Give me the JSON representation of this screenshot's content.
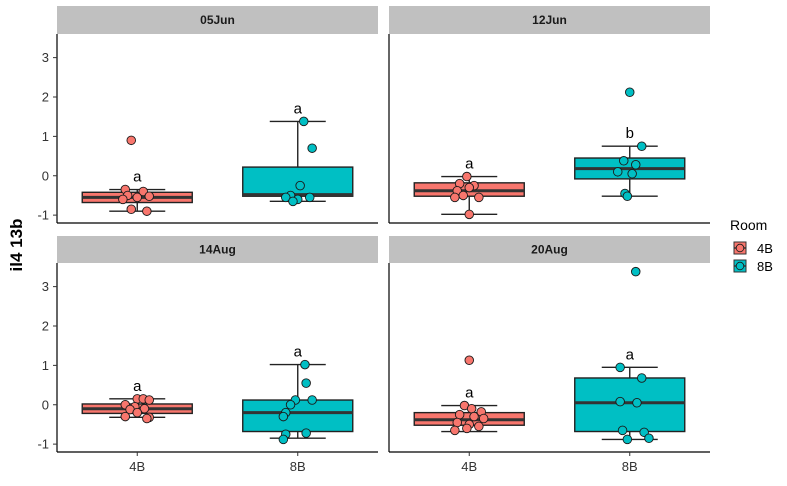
{
  "chart_data": {
    "type": "box",
    "ylabel": "il4 13b",
    "xlabel": "",
    "categories": [
      "4B",
      "8B"
    ],
    "ylim": [
      -1.2,
      3.6
    ],
    "yticks": [
      -1,
      0,
      1,
      2,
      3
    ],
    "grid": false,
    "legend": {
      "title": "Room",
      "position": "right",
      "entries": [
        {
          "name": "4B",
          "color": "#F8766D"
        },
        {
          "name": "8B",
          "color": "#00BFC4"
        }
      ]
    },
    "facets": [
      {
        "label": "05Jun",
        "boxes": [
          {
            "category": "4B",
            "color": "#F8766D",
            "lower_whisker": -0.9,
            "q1": -0.68,
            "median": -0.55,
            "q3": -0.42,
            "upper_whisker": -0.35,
            "letter": "a",
            "points": [
              [
                -0.05,
                0.9
              ],
              [
                -0.1,
                -0.35
              ],
              [
                0.05,
                -0.4
              ],
              [
                -0.08,
                -0.5
              ],
              [
                0.1,
                -0.52
              ],
              [
                0.0,
                -0.55
              ],
              [
                -0.12,
                -0.6
              ],
              [
                -0.05,
                -0.85
              ],
              [
                0.08,
                -0.9
              ]
            ]
          },
          {
            "category": "8B",
            "color": "#00BFC4",
            "lower_whisker": -0.65,
            "q1": -0.52,
            "median": -0.48,
            "q3": 0.22,
            "upper_whisker": 1.38,
            "letter": "a",
            "points": [
              [
                0.05,
                1.38
              ],
              [
                0.12,
                0.7
              ],
              [
                0.02,
                -0.25
              ],
              [
                -0.06,
                -0.5
              ],
              [
                0.1,
                -0.55
              ],
              [
                -0.1,
                -0.55
              ],
              [
                0.0,
                -0.6
              ],
              [
                -0.04,
                -0.65
              ]
            ]
          }
        ]
      },
      {
        "label": "12Jun",
        "boxes": [
          {
            "category": "4B",
            "color": "#F8766D",
            "lower_whisker": -0.98,
            "q1": -0.52,
            "median": -0.38,
            "q3": -0.18,
            "upper_whisker": -0.02,
            "letter": "a",
            "points": [
              [
                -0.02,
                -0.02
              ],
              [
                -0.08,
                -0.2
              ],
              [
                0.04,
                -0.25
              ],
              [
                -0.1,
                -0.38
              ],
              [
                0.0,
                -0.3
              ],
              [
                -0.05,
                -0.5
              ],
              [
                0.08,
                -0.55
              ],
              [
                -0.12,
                -0.55
              ],
              [
                0.0,
                -0.98
              ]
            ]
          },
          {
            "category": "8B",
            "color": "#00BFC4",
            "lower_whisker": -0.52,
            "q1": -0.08,
            "median": 0.18,
            "q3": 0.45,
            "upper_whisker": 0.75,
            "letter": "b",
            "points": [
              [
                0.0,
                2.12
              ],
              [
                0.1,
                0.75
              ],
              [
                -0.05,
                0.38
              ],
              [
                0.05,
                0.28
              ],
              [
                -0.1,
                0.1
              ],
              [
                0.02,
                0.05
              ],
              [
                -0.04,
                -0.45
              ],
              [
                -0.02,
                -0.52
              ]
            ]
          }
        ]
      },
      {
        "label": "14Aug",
        "boxes": [
          {
            "category": "4B",
            "color": "#F8766D",
            "lower_whisker": -0.32,
            "q1": -0.22,
            "median": -0.1,
            "q3": 0.02,
            "upper_whisker": 0.15,
            "letter": "a",
            "points": [
              [
                0.0,
                0.15
              ],
              [
                0.05,
                0.15
              ],
              [
                0.1,
                0.12
              ],
              [
                -0.1,
                0.0
              ],
              [
                -0.02,
                -0.05
              ],
              [
                0.06,
                -0.1
              ],
              [
                -0.06,
                -0.12
              ],
              [
                0.0,
                -0.2
              ],
              [
                -0.1,
                -0.3
              ],
              [
                0.1,
                -0.32
              ],
              [
                0.08,
                -0.35
              ]
            ]
          },
          {
            "category": "8B",
            "color": "#00BFC4",
            "lower_whisker": -0.85,
            "q1": -0.68,
            "median": -0.2,
            "q3": 0.12,
            "upper_whisker": 1.02,
            "letter": "a",
            "points": [
              [
                0.06,
                1.02
              ],
              [
                0.07,
                0.55
              ],
              [
                0.12,
                0.12
              ],
              [
                -0.02,
                0.12
              ],
              [
                -0.06,
                0.0
              ],
              [
                -0.1,
                -0.2
              ],
              [
                -0.12,
                -0.3
              ],
              [
                0.07,
                -0.72
              ],
              [
                -0.1,
                -0.75
              ],
              [
                -0.12,
                -0.88
              ]
            ]
          }
        ]
      },
      {
        "label": "20Aug",
        "boxes": [
          {
            "category": "4B",
            "color": "#F8766D",
            "lower_whisker": -0.68,
            "q1": -0.52,
            "median": -0.38,
            "q3": -0.2,
            "upper_whisker": -0.02,
            "letter": "a",
            "points": [
              [
                0.0,
                1.13
              ],
              [
                -0.04,
                -0.02
              ],
              [
                0.02,
                -0.1
              ],
              [
                0.1,
                -0.18
              ],
              [
                -0.08,
                -0.25
              ],
              [
                0.04,
                -0.3
              ],
              [
                0.12,
                -0.35
              ],
              [
                -0.1,
                -0.45
              ],
              [
                0.0,
                -0.5
              ],
              [
                0.08,
                -0.55
              ],
              [
                -0.02,
                -0.6
              ],
              [
                -0.12,
                -0.65
              ]
            ]
          },
          {
            "category": "8B",
            "color": "#00BFC4",
            "lower_whisker": -0.88,
            "q1": -0.68,
            "median": 0.05,
            "q3": 0.68,
            "upper_whisker": 0.95,
            "letter": "a",
            "points": [
              [
                0.05,
                3.38
              ],
              [
                -0.08,
                0.95
              ],
              [
                0.1,
                0.68
              ],
              [
                -0.08,
                0.08
              ],
              [
                0.06,
                0.05
              ],
              [
                -0.06,
                -0.65
              ],
              [
                0.12,
                -0.7
              ],
              [
                0.16,
                -0.85
              ],
              [
                -0.02,
                -0.88
              ]
            ]
          }
        ]
      }
    ]
  }
}
